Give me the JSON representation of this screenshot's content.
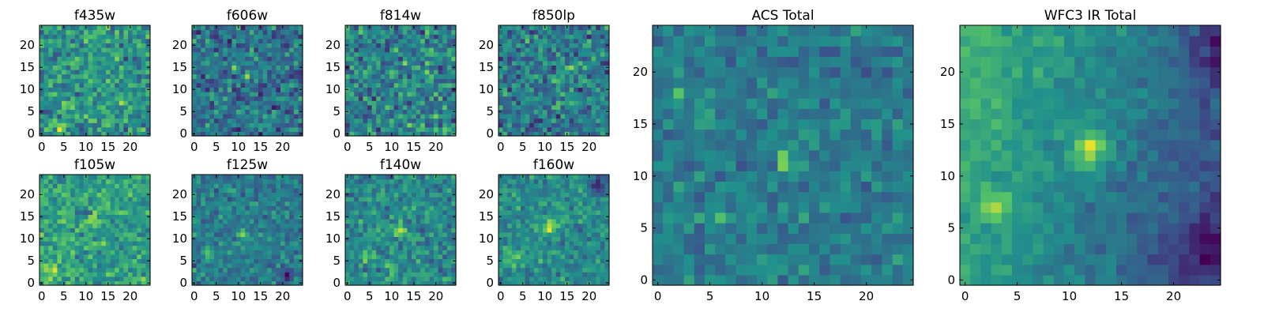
{
  "figure": {
    "background": "#ffffff",
    "colormap": "viridis",
    "colormap_stops": [
      "#440154",
      "#3b528b",
      "#21918c",
      "#5ec962",
      "#fde725"
    ]
  },
  "chart_data": [
    {
      "type": "heatmap",
      "title": "f435w",
      "xlabel": "",
      "ylabel": "",
      "grid": false,
      "xlim": [
        -0.5,
        24.5
      ],
      "ylim": [
        -0.5,
        24.5
      ],
      "x_ticks": [
        0,
        5,
        10,
        15,
        20
      ],
      "y_ticks": [
        0,
        5,
        10,
        15,
        20
      ],
      "field": {
        "mean": 0.52,
        "noise": 0.16,
        "blobs": [
          {
            "x": 18,
            "y": 8,
            "amp": 0.28,
            "sigma": 0.7
          },
          {
            "x": 7,
            "y": 7,
            "amp": 0.22,
            "sigma": 0.7
          },
          {
            "x": 17,
            "y": 17,
            "amp": 0.25,
            "sigma": 0.6
          },
          {
            "x": 4,
            "y": 1,
            "amp": 0.18,
            "sigma": 0.8
          }
        ]
      }
    },
    {
      "type": "heatmap",
      "title": "f606w",
      "xlabel": "",
      "ylabel": "",
      "grid": false,
      "xlim": [
        -0.5,
        24.5
      ],
      "ylim": [
        -0.5,
        24.5
      ],
      "x_ticks": [
        0,
        5,
        10,
        15,
        20
      ],
      "y_ticks": [
        0,
        5,
        10,
        15,
        20
      ],
      "field": {
        "mean": 0.38,
        "noise": 0.15,
        "blobs": [
          {
            "x": 12,
            "y": 13,
            "amp": 0.42,
            "sigma": 0.6
          },
          {
            "x": 9,
            "y": 15,
            "amp": 0.28,
            "sigma": 0.6
          },
          {
            "x": 3,
            "y": 17,
            "amp": 0.25,
            "sigma": 0.6
          }
        ]
      }
    },
    {
      "type": "heatmap",
      "title": "f814w",
      "xlabel": "",
      "ylabel": "",
      "grid": false,
      "xlim": [
        -0.5,
        24.5
      ],
      "ylim": [
        -0.5,
        24.5
      ],
      "x_ticks": [
        0,
        5,
        10,
        15,
        20
      ],
      "y_ticks": [
        0,
        5,
        10,
        15,
        20
      ],
      "field": {
        "mean": 0.45,
        "noise": 0.17,
        "blobs": [
          {
            "x": 13,
            "y": 11,
            "amp": 0.35,
            "sigma": 0.6
          },
          {
            "x": 18,
            "y": 14,
            "amp": 0.3,
            "sigma": 0.6
          },
          {
            "x": 10,
            "y": 14,
            "amp": 0.22,
            "sigma": 0.7
          }
        ]
      }
    },
    {
      "type": "heatmap",
      "title": "f850lp",
      "xlabel": "",
      "ylabel": "",
      "grid": false,
      "xlim": [
        -0.5,
        24.5
      ],
      "ylim": [
        -0.5,
        24.5
      ],
      "x_ticks": [
        0,
        5,
        10,
        15,
        20
      ],
      "y_ticks": [
        0,
        5,
        10,
        15,
        20
      ],
      "field": {
        "mean": 0.42,
        "noise": 0.16,
        "blobs": [
          {
            "x": 12,
            "y": 12,
            "amp": 0.35,
            "sigma": 0.7
          },
          {
            "x": 15,
            "y": 15,
            "amp": 0.28,
            "sigma": 0.7
          },
          {
            "x": 13,
            "y": 6,
            "amp": 0.25,
            "sigma": 0.7
          }
        ]
      }
    },
    {
      "type": "heatmap",
      "title": "f105w",
      "xlabel": "",
      "ylabel": "",
      "grid": false,
      "xlim": [
        -0.5,
        24.5
      ],
      "ylim": [
        -0.5,
        24.5
      ],
      "x_ticks": [
        0,
        5,
        10,
        15,
        20
      ],
      "y_ticks": [
        0,
        5,
        10,
        15,
        20
      ],
      "field": {
        "mean": 0.56,
        "noise": 0.13,
        "blobs": [
          {
            "x": 2,
            "y": 3,
            "amp": 0.35,
            "sigma": 1.4
          },
          {
            "x": 12,
            "y": 14,
            "amp": 0.3,
            "sigma": 1.0
          },
          {
            "x": 5,
            "y": 10,
            "amp": 0.2,
            "sigma": 1.2
          },
          {
            "x": 10,
            "y": 16,
            "amp": -0.3,
            "sigma": 0.7
          }
        ]
      }
    },
    {
      "type": "heatmap",
      "title": "f125w",
      "xlabel": "",
      "ylabel": "",
      "grid": false,
      "xlim": [
        -0.5,
        24.5
      ],
      "ylim": [
        -0.5,
        24.5
      ],
      "x_ticks": [
        0,
        5,
        10,
        15,
        20
      ],
      "y_ticks": [
        0,
        5,
        10,
        15,
        20
      ],
      "field": {
        "mean": 0.42,
        "noise": 0.11,
        "blobs": [
          {
            "x": 11,
            "y": 11,
            "amp": 0.35,
            "sigma": 0.8
          },
          {
            "x": 3,
            "y": 7,
            "amp": 0.3,
            "sigma": 0.8
          },
          {
            "x": 21,
            "y": 2,
            "amp": -0.25,
            "sigma": 1.5
          }
        ]
      }
    },
    {
      "type": "heatmap",
      "title": "f140w",
      "xlabel": "",
      "ylabel": "",
      "grid": false,
      "xlim": [
        -0.5,
        24.5
      ],
      "ylim": [
        -0.5,
        24.5
      ],
      "x_ticks": [
        0,
        5,
        10,
        15,
        20
      ],
      "y_ticks": [
        0,
        5,
        10,
        15,
        20
      ],
      "field": {
        "mean": 0.47,
        "noise": 0.12,
        "blobs": [
          {
            "x": 12,
            "y": 12,
            "amp": 0.38,
            "sigma": 0.9
          },
          {
            "x": 4,
            "y": 6,
            "amp": 0.25,
            "sigma": 1.0
          },
          {
            "x": 10,
            "y": 4,
            "amp": 0.22,
            "sigma": 1.0
          }
        ]
      }
    },
    {
      "type": "heatmap",
      "title": "f160w",
      "xlabel": "",
      "ylabel": "",
      "grid": false,
      "xlim": [
        -0.5,
        24.5
      ],
      "ylim": [
        -0.5,
        24.5
      ],
      "x_ticks": [
        0,
        5,
        10,
        15,
        20
      ],
      "y_ticks": [
        0,
        5,
        10,
        15,
        20
      ],
      "field": {
        "mean": 0.48,
        "noise": 0.11,
        "blobs": [
          {
            "x": 11,
            "y": 13,
            "amp": 0.42,
            "sigma": 1.0
          },
          {
            "x": 3,
            "y": 6,
            "amp": 0.25,
            "sigma": 1.3
          },
          {
            "x": 22,
            "y": 22,
            "amp": -0.3,
            "sigma": 1.5
          }
        ]
      }
    },
    {
      "type": "heatmap",
      "title": "ACS Total",
      "xlabel": "",
      "ylabel": "",
      "grid": false,
      "xlim": [
        -0.5,
        24.5
      ],
      "ylim": [
        -0.5,
        24.5
      ],
      "x_ticks": [
        0,
        5,
        10,
        15,
        20
      ],
      "y_ticks": [
        0,
        5,
        10,
        15,
        20
      ],
      "field": {
        "mean": 0.42,
        "noise": 0.09,
        "blobs": [
          {
            "x": 12,
            "y": 11.5,
            "amp": 0.5,
            "sigma": 0.6
          },
          {
            "x": 2,
            "y": 18,
            "amp": 0.4,
            "sigma": 0.5
          },
          {
            "x": 6,
            "y": 6,
            "amp": 0.22,
            "sigma": 0.6
          },
          {
            "x": 20,
            "y": 20,
            "amp": -0.35,
            "sigma": 0.5
          }
        ]
      }
    },
    {
      "type": "heatmap",
      "title": "WFC3 IR Total",
      "xlabel": "",
      "ylabel": "",
      "grid": false,
      "xlim": [
        -0.5,
        24.5
      ],
      "ylim": [
        -0.5,
        24.5
      ],
      "x_ticks": [
        0,
        5,
        10,
        15,
        20
      ],
      "y_ticks": [
        0,
        5,
        10,
        15,
        20
      ],
      "field": {
        "mean": 0.44,
        "noise": 0.06,
        "gradient": {
          "x": -0.014,
          "y": 0.004
        },
        "blobs": [
          {
            "x": 12,
            "y": 12.5,
            "amp": 0.45,
            "sigma": 1.2
          },
          {
            "x": 3,
            "y": 7,
            "amp": 0.35,
            "sigma": 0.8
          },
          {
            "x": 23,
            "y": 3,
            "amp": -0.2,
            "sigma": 2.0
          },
          {
            "x": 24,
            "y": 22,
            "amp": -0.2,
            "sigma": 2.0
          }
        ]
      }
    }
  ]
}
